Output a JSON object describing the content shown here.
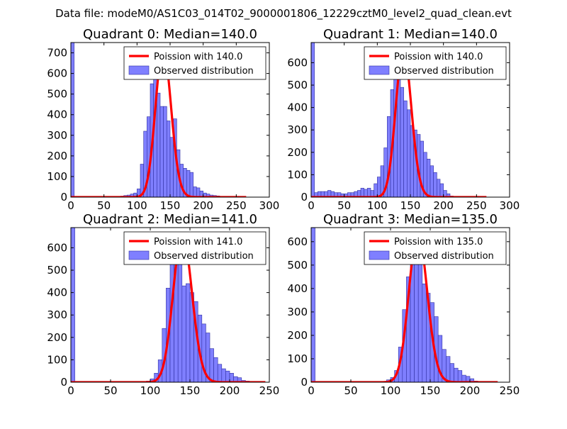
{
  "figure": {
    "suptitle": "Data file: modeM0/AS1C03_014T02_9000001806_12229cztM0_level2_quad_clean.evt"
  },
  "colors": {
    "hist_fill": "#7f7fff",
    "hist_edge": "#3030a0",
    "poisson_line": "#ff0000",
    "axes": "#000000"
  },
  "chart_data": [
    {
      "type": "bar",
      "quadrant": 0,
      "title": "Quadrant 0: Median=140.0",
      "xlim": [
        0,
        300
      ],
      "ylim": [
        0,
        750
      ],
      "xticks": [
        "0",
        "50",
        "100",
        "150",
        "200",
        "250",
        "300"
      ],
      "yticks": [
        "0",
        "100",
        "200",
        "300",
        "400",
        "500",
        "600",
        "700"
      ],
      "legend": [
        "Poission with 140.0",
        "Observed distribution"
      ],
      "legend_loc": "top-right",
      "bin_width": 5,
      "bins": [
        {
          "x": 0,
          "h": 750
        },
        {
          "x": 5,
          "h": 3
        },
        {
          "x": 10,
          "h": 2
        },
        {
          "x": 15,
          "h": 2
        },
        {
          "x": 20,
          "h": 2
        },
        {
          "x": 25,
          "h": 2
        },
        {
          "x": 30,
          "h": 2
        },
        {
          "x": 35,
          "h": 2
        },
        {
          "x": 40,
          "h": 2
        },
        {
          "x": 45,
          "h": 2
        },
        {
          "x": 50,
          "h": 2
        },
        {
          "x": 55,
          "h": 2
        },
        {
          "x": 60,
          "h": 2
        },
        {
          "x": 65,
          "h": 2
        },
        {
          "x": 70,
          "h": 3
        },
        {
          "x": 75,
          "h": 5
        },
        {
          "x": 80,
          "h": 8
        },
        {
          "x": 85,
          "h": 10
        },
        {
          "x": 90,
          "h": 15
        },
        {
          "x": 95,
          "h": 20
        },
        {
          "x": 100,
          "h": 40
        },
        {
          "x": 105,
          "h": 160
        },
        {
          "x": 110,
          "h": 320
        },
        {
          "x": 115,
          "h": 390
        },
        {
          "x": 120,
          "h": 550
        },
        {
          "x": 125,
          "h": 590
        },
        {
          "x": 130,
          "h": 505
        },
        {
          "x": 135,
          "h": 440
        },
        {
          "x": 140,
          "h": 440
        },
        {
          "x": 145,
          "h": 370
        },
        {
          "x": 150,
          "h": 290
        },
        {
          "x": 155,
          "h": 380
        },
        {
          "x": 160,
          "h": 230
        },
        {
          "x": 165,
          "h": 160
        },
        {
          "x": 170,
          "h": 140
        },
        {
          "x": 175,
          "h": 130
        },
        {
          "x": 180,
          "h": 120
        },
        {
          "x": 185,
          "h": 50
        },
        {
          "x": 190,
          "h": 45
        },
        {
          "x": 195,
          "h": 30
        },
        {
          "x": 200,
          "h": 20
        },
        {
          "x": 205,
          "h": 15
        },
        {
          "x": 210,
          "h": 10
        },
        {
          "x": 215,
          "h": 8
        },
        {
          "x": 220,
          "h": 6
        },
        {
          "x": 225,
          "h": 4
        },
        {
          "x": 230,
          "h": 3
        },
        {
          "x": 235,
          "h": 2
        },
        {
          "x": 240,
          "h": 2
        },
        {
          "x": 245,
          "h": 2
        }
      ],
      "poisson": {
        "mean": 140.0,
        "x_range": [
          0,
          265
        ],
        "peak": 720
      }
    },
    {
      "type": "bar",
      "quadrant": 1,
      "title": "Quadrant 1: Median=140.0",
      "xlim": [
        0,
        300
      ],
      "ylim": [
        0,
        690
      ],
      "xticks": [
        "0",
        "50",
        "100",
        "150",
        "200",
        "250",
        "300"
      ],
      "yticks": [
        "0",
        "100",
        "200",
        "300",
        "400",
        "500",
        "600"
      ],
      "legend": [
        "Poission with 140.0",
        "Observed distribution"
      ],
      "legend_loc": "top-right",
      "bin_width": 5,
      "bins": [
        {
          "x": 0,
          "h": 690
        },
        {
          "x": 5,
          "h": 20
        },
        {
          "x": 10,
          "h": 25
        },
        {
          "x": 15,
          "h": 25
        },
        {
          "x": 20,
          "h": 25
        },
        {
          "x": 25,
          "h": 30
        },
        {
          "x": 30,
          "h": 25
        },
        {
          "x": 35,
          "h": 20
        },
        {
          "x": 40,
          "h": 20
        },
        {
          "x": 45,
          "h": 15
        },
        {
          "x": 50,
          "h": 15
        },
        {
          "x": 55,
          "h": 20
        },
        {
          "x": 60,
          "h": 20
        },
        {
          "x": 65,
          "h": 25
        },
        {
          "x": 70,
          "h": 30
        },
        {
          "x": 75,
          "h": 40
        },
        {
          "x": 80,
          "h": 35
        },
        {
          "x": 85,
          "h": 40
        },
        {
          "x": 90,
          "h": 30
        },
        {
          "x": 95,
          "h": 60
        },
        {
          "x": 100,
          "h": 90
        },
        {
          "x": 105,
          "h": 140
        },
        {
          "x": 110,
          "h": 220
        },
        {
          "x": 115,
          "h": 360
        },
        {
          "x": 120,
          "h": 480
        },
        {
          "x": 125,
          "h": 600
        },
        {
          "x": 130,
          "h": 540
        },
        {
          "x": 135,
          "h": 490
        },
        {
          "x": 140,
          "h": 430
        },
        {
          "x": 145,
          "h": 390
        },
        {
          "x": 150,
          "h": 320
        },
        {
          "x": 155,
          "h": 300
        },
        {
          "x": 160,
          "h": 280
        },
        {
          "x": 165,
          "h": 250
        },
        {
          "x": 170,
          "h": 200
        },
        {
          "x": 175,
          "h": 170
        },
        {
          "x": 180,
          "h": 140
        },
        {
          "x": 185,
          "h": 110
        },
        {
          "x": 190,
          "h": 80
        },
        {
          "x": 195,
          "h": 60
        },
        {
          "x": 200,
          "h": 30
        },
        {
          "x": 205,
          "h": 15
        },
        {
          "x": 210,
          "h": 5
        },
        {
          "x": 215,
          "h": 3
        },
        {
          "x": 220,
          "h": 2
        },
        {
          "x": 225,
          "h": 2
        }
      ],
      "poisson": {
        "mean": 140.0,
        "x_range": [
          0,
          265
        ],
        "peak": 660
      }
    },
    {
      "type": "bar",
      "quadrant": 2,
      "title": "Quadrant 2: Median=141.0",
      "xlim": [
        0,
        250
      ],
      "ylim": [
        0,
        690
      ],
      "xticks": [
        "0",
        "50",
        "100",
        "150",
        "200",
        "250"
      ],
      "yticks": [
        "0",
        "100",
        "200",
        "300",
        "400",
        "500",
        "600"
      ],
      "legend": [
        "Poission with 141.0",
        "Observed distribution"
      ],
      "legend_loc": "top-right",
      "bin_width": 5,
      "bins": [
        {
          "x": 0,
          "h": 690
        },
        {
          "x": 5,
          "h": 2
        },
        {
          "x": 10,
          "h": 2
        },
        {
          "x": 15,
          "h": 2
        },
        {
          "x": 20,
          "h": 2
        },
        {
          "x": 25,
          "h": 2
        },
        {
          "x": 30,
          "h": 2
        },
        {
          "x": 35,
          "h": 2
        },
        {
          "x": 40,
          "h": 2
        },
        {
          "x": 45,
          "h": 2
        },
        {
          "x": 50,
          "h": 2
        },
        {
          "x": 55,
          "h": 2
        },
        {
          "x": 60,
          "h": 2
        },
        {
          "x": 65,
          "h": 2
        },
        {
          "x": 70,
          "h": 2
        },
        {
          "x": 75,
          "h": 2
        },
        {
          "x": 80,
          "h": 2
        },
        {
          "x": 85,
          "h": 2
        },
        {
          "x": 90,
          "h": 2
        },
        {
          "x": 95,
          "h": 5
        },
        {
          "x": 100,
          "h": 15
        },
        {
          "x": 105,
          "h": 40
        },
        {
          "x": 110,
          "h": 100
        },
        {
          "x": 115,
          "h": 240
        },
        {
          "x": 120,
          "h": 420
        },
        {
          "x": 125,
          "h": 560
        },
        {
          "x": 130,
          "h": 600
        },
        {
          "x": 135,
          "h": 540
        },
        {
          "x": 140,
          "h": 430
        },
        {
          "x": 145,
          "h": 440
        },
        {
          "x": 150,
          "h": 400
        },
        {
          "x": 155,
          "h": 360
        },
        {
          "x": 160,
          "h": 300
        },
        {
          "x": 165,
          "h": 260
        },
        {
          "x": 170,
          "h": 220
        },
        {
          "x": 175,
          "h": 150
        },
        {
          "x": 180,
          "h": 110
        },
        {
          "x": 185,
          "h": 80
        },
        {
          "x": 190,
          "h": 60
        },
        {
          "x": 195,
          "h": 50
        },
        {
          "x": 200,
          "h": 40
        },
        {
          "x": 205,
          "h": 25
        },
        {
          "x": 210,
          "h": 20
        },
        {
          "x": 215,
          "h": 8
        },
        {
          "x": 220,
          "h": 5
        },
        {
          "x": 225,
          "h": 3
        },
        {
          "x": 230,
          "h": 2
        }
      ],
      "poisson": {
        "mean": 141.0,
        "x_range": [
          0,
          245
        ],
        "peak": 660
      }
    },
    {
      "type": "bar",
      "quadrant": 3,
      "title": "Quadrant 3: Median=135.0",
      "xlim": [
        0,
        250
      ],
      "ylim": [
        0,
        660
      ],
      "xticks": [
        "0",
        "50",
        "100",
        "150",
        "200",
        "250"
      ],
      "yticks": [
        "0",
        "100",
        "200",
        "300",
        "400",
        "500",
        "600"
      ],
      "legend": [
        "Poission with 135.0",
        "Observed distribution"
      ],
      "legend_loc": "top-right",
      "bin_width": 5,
      "bins": [
        {
          "x": 0,
          "h": 660
        },
        {
          "x": 5,
          "h": 2
        },
        {
          "x": 10,
          "h": 2
        },
        {
          "x": 15,
          "h": 2
        },
        {
          "x": 20,
          "h": 2
        },
        {
          "x": 25,
          "h": 2
        },
        {
          "x": 30,
          "h": 2
        },
        {
          "x": 35,
          "h": 2
        },
        {
          "x": 40,
          "h": 2
        },
        {
          "x": 45,
          "h": 2
        },
        {
          "x": 50,
          "h": 2
        },
        {
          "x": 55,
          "h": 2
        },
        {
          "x": 60,
          "h": 2
        },
        {
          "x": 65,
          "h": 2
        },
        {
          "x": 70,
          "h": 2
        },
        {
          "x": 75,
          "h": 2
        },
        {
          "x": 80,
          "h": 2
        },
        {
          "x": 85,
          "h": 2
        },
        {
          "x": 90,
          "h": 3
        },
        {
          "x": 95,
          "h": 10
        },
        {
          "x": 100,
          "h": 20
        },
        {
          "x": 105,
          "h": 50
        },
        {
          "x": 110,
          "h": 150
        },
        {
          "x": 115,
          "h": 310
        },
        {
          "x": 120,
          "h": 450
        },
        {
          "x": 125,
          "h": 570
        },
        {
          "x": 130,
          "h": 560
        },
        {
          "x": 135,
          "h": 510
        },
        {
          "x": 140,
          "h": 420
        },
        {
          "x": 145,
          "h": 380
        },
        {
          "x": 150,
          "h": 340
        },
        {
          "x": 155,
          "h": 280
        },
        {
          "x": 160,
          "h": 200
        },
        {
          "x": 165,
          "h": 140
        },
        {
          "x": 170,
          "h": 110
        },
        {
          "x": 175,
          "h": 80
        },
        {
          "x": 180,
          "h": 60
        },
        {
          "x": 185,
          "h": 50
        },
        {
          "x": 190,
          "h": 30
        },
        {
          "x": 195,
          "h": 25
        },
        {
          "x": 200,
          "h": 15
        },
        {
          "x": 205,
          "h": 5
        },
        {
          "x": 210,
          "h": 3
        },
        {
          "x": 215,
          "h": 2
        }
      ],
      "poisson": {
        "mean": 135.0,
        "x_range": [
          0,
          235
        ],
        "peak": 635
      }
    }
  ]
}
